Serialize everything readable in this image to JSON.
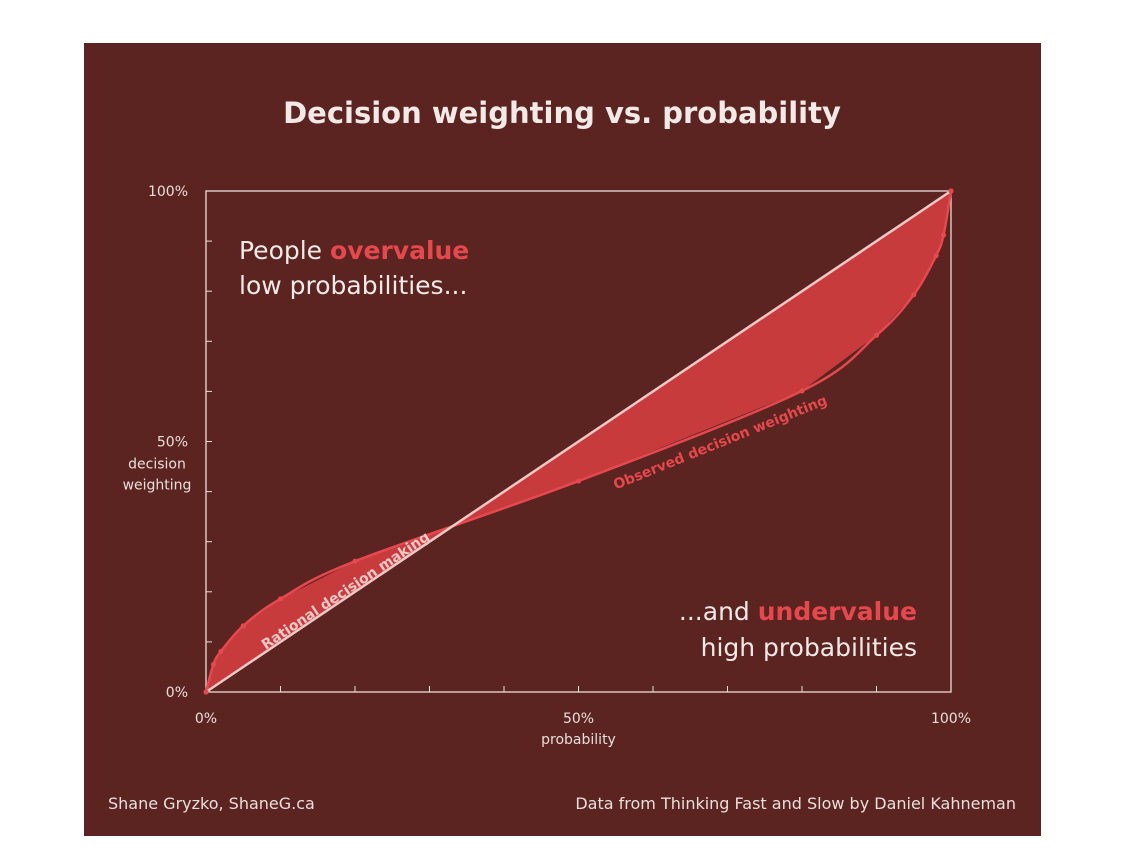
{
  "colors": {
    "background": "#5c2421",
    "page": "#ffffff",
    "accent": "#e5484d",
    "fill": "#cc3d3f",
    "rational_line": "#f1c8c6",
    "text": "#f3e9e6",
    "axis": "#eadedb"
  },
  "chart_data": {
    "type": "area",
    "title": "Decision weighting vs. probability",
    "xlabel": "probability",
    "ylabel": "decision weighting",
    "xlim": [
      0,
      100
    ],
    "ylim": [
      0,
      100
    ],
    "x_ticks": [
      "0%",
      "50%",
      "100%"
    ],
    "y_ticks": [
      "0%",
      "50%",
      "100%"
    ],
    "series": [
      {
        "name": "Rational decision making",
        "x": [
          0,
          100
        ],
        "y": [
          0,
          100
        ]
      },
      {
        "name": "Observed decision weighting",
        "x": [
          0,
          1,
          2,
          5,
          10,
          20,
          50,
          80,
          90,
          95,
          98,
          99,
          100
        ],
        "y": [
          0,
          5.5,
          8.1,
          13.2,
          18.6,
          26.1,
          42.1,
          60.1,
          71.2,
          79.3,
          87.1,
          91.2,
          100
        ]
      }
    ],
    "annotations": {
      "top_left": {
        "prefix": "People ",
        "emphasis": "overvalue",
        "line2": "low probabilities..."
      },
      "bottom_right": {
        "prefix": "...and ",
        "emphasis": "undervalue",
        "line2": "high probabilities"
      }
    }
  },
  "footer": {
    "left": "Shane Gryzko, ShaneG.ca",
    "right": "Data from Thinking Fast and Slow by Daniel Kahneman"
  }
}
